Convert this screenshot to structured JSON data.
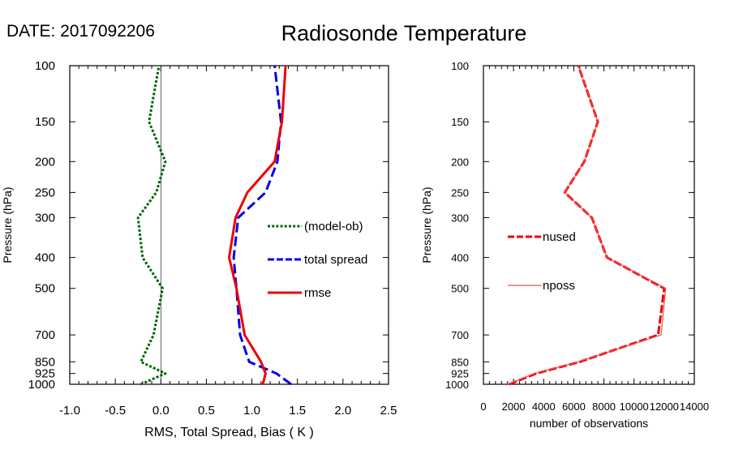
{
  "header": {
    "date_label": "DATE: 2017092206",
    "title": "Radiosonde Temperature"
  },
  "chart_data": [
    {
      "type": "line",
      "xlabel": "RMS, Total Spread, Bias ( K )",
      "ylabel": "Pressure (hPa)",
      "xlim": [
        -1.0,
        2.5
      ],
      "ylim": [
        1000,
        100
      ],
      "yscale": "log",
      "x_tick_labels": [
        "-1.0",
        "-0.5",
        "0.0",
        "0.5",
        "1.0",
        "1.5",
        "2.0",
        "2.5"
      ],
      "x_ticks": [
        -1.0,
        -0.5,
        0.0,
        0.5,
        1.0,
        1.5,
        2.0,
        2.5
      ],
      "y_ticks": [
        100,
        150,
        200,
        250,
        300,
        400,
        500,
        700,
        850,
        925,
        1000
      ],
      "y_tick_labels": [
        "100",
        "150",
        "200",
        "250",
        "300",
        "400",
        "500",
        "700",
        "850",
        "925",
        "1000"
      ],
      "zero_line": true,
      "grid": false,
      "legend_placement": "center-right",
      "series": [
        {
          "name": "(model-ob)",
          "color": "#006400",
          "style": "dotted",
          "points": [
            [
              -0.22,
              1000
            ],
            [
              0.05,
              925
            ],
            [
              -0.22,
              850
            ],
            [
              -0.08,
              700
            ],
            [
              0.02,
              500
            ],
            [
              -0.2,
              400
            ],
            [
              -0.25,
              300
            ],
            [
              -0.05,
              250
            ],
            [
              0.05,
              200
            ],
            [
              -0.13,
              150
            ],
            [
              -0.02,
              100
            ]
          ]
        },
        {
          "name": "total spread",
          "color": "#0000ee",
          "style": "dashed",
          "points": [
            [
              1.43,
              1000
            ],
            [
              1.27,
              925
            ],
            [
              0.97,
              850
            ],
            [
              0.87,
              700
            ],
            [
              0.83,
              500
            ],
            [
              0.8,
              400
            ],
            [
              0.85,
              300
            ],
            [
              1.15,
              250
            ],
            [
              1.28,
              200
            ],
            [
              1.32,
              150
            ],
            [
              1.25,
              100
            ]
          ]
        },
        {
          "name": "rmse",
          "color": "#ee0000",
          "style": "solid",
          "points": [
            [
              1.12,
              1000
            ],
            [
              1.15,
              925
            ],
            [
              1.1,
              850
            ],
            [
              0.92,
              700
            ],
            [
              0.83,
              500
            ],
            [
              0.75,
              400
            ],
            [
              0.82,
              300
            ],
            [
              0.95,
              250
            ],
            [
              1.25,
              200
            ],
            [
              1.33,
              150
            ],
            [
              1.37,
              100
            ]
          ]
        }
      ]
    },
    {
      "type": "line",
      "xlabel": "number of observations",
      "ylabel": "Pressure (hPa)",
      "xlim": [
        0,
        14000
      ],
      "ylim": [
        1000,
        100
      ],
      "yscale": "log",
      "x_tick_labels": [
        "0",
        "2000",
        "4000",
        "6000",
        "8000",
        "10000",
        "12000",
        "14000"
      ],
      "x_ticks": [
        0,
        2000,
        4000,
        6000,
        8000,
        10000,
        12000,
        14000
      ],
      "y_ticks": [
        100,
        150,
        200,
        250,
        300,
        400,
        500,
        700,
        850,
        925,
        1000
      ],
      "y_tick_labels": [
        "100",
        "150",
        "200",
        "250",
        "300",
        "400",
        "500",
        "700",
        "850",
        "925",
        "1000"
      ],
      "grid": false,
      "legend_placement": "center-left",
      "series": [
        {
          "name": "nused",
          "color": "#ee0000",
          "style": "dashed",
          "points": [
            [
              1700,
              1000
            ],
            [
              3500,
              925
            ],
            [
              6400,
              850
            ],
            [
              11600,
              700
            ],
            [
              12000,
              500
            ],
            [
              8200,
              400
            ],
            [
              7200,
              300
            ],
            [
              5400,
              250
            ],
            [
              6700,
              200
            ],
            [
              7600,
              150
            ],
            [
              6300,
              100
            ]
          ]
        },
        {
          "name": "nposs",
          "color": "#f05050",
          "style": "solid",
          "points": [
            [
              1600,
              1000
            ],
            [
              3400,
              925
            ],
            [
              6300,
              850
            ],
            [
              11800,
              700
            ],
            [
              12100,
              500
            ],
            [
              8200,
              400
            ],
            [
              7200,
              300
            ],
            [
              5400,
              250
            ],
            [
              6700,
              200
            ],
            [
              7600,
              150
            ],
            [
              6300,
              100
            ]
          ]
        }
      ]
    }
  ]
}
